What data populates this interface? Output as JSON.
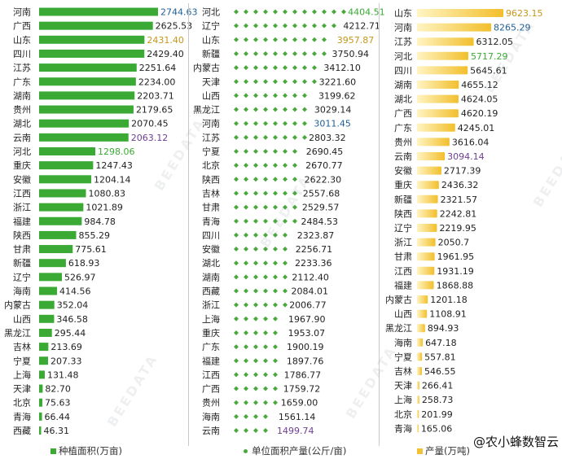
{
  "colors": {
    "area_bar": "#3aaa35",
    "yield_marker": "#4aa93d",
    "production_bar_light": "#fff4c2",
    "production_bar_dark": "#f2bf2c",
    "text": "#222222"
  },
  "watermark": "BEEDATA",
  "brand": "@农小蜂数智云",
  "chart_data": [
    {
      "type": "bar",
      "orientation": "horizontal",
      "legend": "种植面积(万亩)",
      "categories": [
        "河南",
        "广西",
        "山东",
        "四川",
        "江苏",
        "广东",
        "湖南",
        "贵州",
        "湖北",
        "云南",
        "河北",
        "重庆",
        "安徽",
        "江西",
        "浙江",
        "福建",
        "陕西",
        "甘肃",
        "新疆",
        "辽宁",
        "海南",
        "内蒙古",
        "山西",
        "黑龙江",
        "吉林",
        "宁夏",
        "上海",
        "天津",
        "北京",
        "青海",
        "西藏"
      ],
      "values": [
        2744.63,
        2625.53,
        2431.4,
        2429.4,
        2251.64,
        2234.0,
        2203.71,
        2179.65,
        2070.45,
        2063.12,
        1298.06,
        1247.43,
        1204.14,
        1080.83,
        1021.89,
        984.78,
        855.29,
        775.61,
        618.93,
        526.97,
        414.56,
        352.04,
        346.58,
        295.44,
        213.69,
        207.33,
        131.48,
        82.7,
        75.63,
        66.44,
        46.31
      ],
      "value_label_colors": [
        "#1f5f95",
        "#222222",
        "#c8961a",
        "#222222",
        "#222222",
        "#222222",
        "#222222",
        "#222222",
        "#222222",
        "#6e3e93",
        "#3aaa35",
        "#222222",
        "#222222",
        "#222222",
        "#222222",
        "#222222",
        "#222222",
        "#222222",
        "#222222",
        "#222222",
        "#222222",
        "#222222",
        "#222222",
        "#222222",
        "#222222",
        "#222222",
        "#222222",
        "#222222",
        "#222222",
        "#222222",
        "#222222"
      ]
    },
    {
      "type": "scatter",
      "marker": "diamond-row",
      "legend": "单位面积产量(公斤/亩)",
      "categories": [
        "河北",
        "辽宁",
        "山东",
        "新疆",
        "内蒙古",
        "天津",
        "山西",
        "黑龙江",
        "河南",
        "江苏",
        "宁夏",
        "北京",
        "陕西",
        "吉林",
        "甘肃",
        "青海",
        "四川",
        "安徽",
        "湖北",
        "湖南",
        "西藏",
        "浙江",
        "上海",
        "重庆",
        "广东",
        "福建",
        "江西",
        "广西",
        "贵州",
        "海南",
        "云南"
      ],
      "values": [
        4404.51,
        4212.71,
        3957.87,
        3750.94,
        3412.1,
        3221.6,
        3199.62,
        3029.14,
        3011.45,
        2803.32,
        2690.45,
        2670.77,
        2622.3,
        2557.68,
        2529.57,
        2484.53,
        2323.87,
        2256.71,
        2233.36,
        2112.4,
        2084.01,
        2006.77,
        1967.9,
        1953.07,
        1900.19,
        1897.76,
        1786.77,
        1759.72,
        1659.0,
        1561.14,
        1499.74
      ],
      "value_label_colors": [
        "#3aaa35",
        "#222222",
        "#c8961a",
        "#222222",
        "#222222",
        "#222222",
        "#222222",
        "#222222",
        "#1f5f95",
        "#222222",
        "#222222",
        "#222222",
        "#222222",
        "#222222",
        "#222222",
        "#222222",
        "#222222",
        "#222222",
        "#222222",
        "#222222",
        "#222222",
        "#222222",
        "#222222",
        "#222222",
        "#222222",
        "#222222",
        "#222222",
        "#222222",
        "#222222",
        "#222222",
        "#6e3e93"
      ]
    },
    {
      "type": "bar",
      "orientation": "horizontal",
      "legend": "产量(万吨)",
      "categories": [
        "山东",
        "河南",
        "江苏",
        "河北",
        "四川",
        "湖南",
        "湖北",
        "广西",
        "广东",
        "贵州",
        "云南",
        "安徽",
        "重庆",
        "新疆",
        "陕西",
        "辽宁",
        "浙江",
        "甘肃",
        "江西",
        "福建",
        "内蒙古",
        "山西",
        "黑龙江",
        "海南",
        "宁夏",
        "吉林",
        "天津",
        "上海",
        "北京",
        "青海"
      ],
      "values": [
        9623.15,
        8265.29,
        6312.05,
        5717.29,
        5645.61,
        4655.12,
        4624.05,
        4620.19,
        4245.01,
        3616.04,
        3094.14,
        2717.39,
        2436.32,
        2321.57,
        2242.81,
        2219.95,
        2050.7,
        1961.95,
        1931.19,
        1868.88,
        1201.18,
        1108.91,
        894.93,
        647.18,
        557.81,
        546.55,
        266.41,
        258.73,
        201.99,
        165.06
      ],
      "value_label_colors": [
        "#c8961a",
        "#1f5f95",
        "#222222",
        "#3aaa35",
        "#222222",
        "#222222",
        "#222222",
        "#222222",
        "#222222",
        "#222222",
        "#6e3e93",
        "#222222",
        "#222222",
        "#222222",
        "#222222",
        "#222222",
        "#222222",
        "#222222",
        "#222222",
        "#222222",
        "#222222",
        "#222222",
        "#222222",
        "#222222",
        "#222222",
        "#222222",
        "#222222",
        "#222222",
        "#222222",
        "#222222"
      ]
    }
  ]
}
